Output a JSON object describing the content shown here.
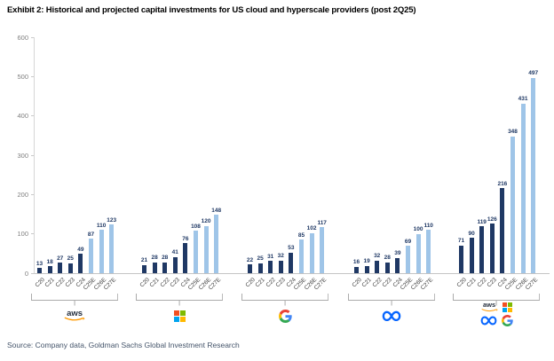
{
  "title": "Exhibit 2: Historical and projected capital investments for US cloud and hyperscale providers (post 2Q25)",
  "source": "Source: Company data, Goldman Sachs Global Investment Research",
  "colors": {
    "historical_bar": "#1F3864",
    "estimate_bar": "#9FC5E8",
    "value_label": "#1F3864",
    "axis_line": "#C4C4C4",
    "y_tick_label": "#7F7F7F",
    "x_tick_label": "#404040",
    "bracket": "#ABABAB",
    "source_text": "#44546A",
    "title_text": "#000000"
  },
  "logos": {
    "aws": {
      "label": "aws",
      "text_color": "#252F3E",
      "swoosh_color": "#FF9900"
    },
    "microsoft": {
      "square_colors": [
        "#F25022",
        "#7FBA00",
        "#00A4EF",
        "#FFB900"
      ]
    },
    "google": {
      "g_colors": [
        "#EA4335",
        "#4285F4",
        "#FBBC05",
        "#34A853"
      ]
    },
    "meta": {
      "infinity_color": "#0866FF"
    }
  },
  "chart_data": {
    "type": "bar",
    "title": "Exhibit 2: Historical and projected capital investments for US cloud and hyperscale providers (post 2Q25)",
    "categories": [
      "C20",
      "C21",
      "C22",
      "C23",
      "C24",
      "C25E",
      "C26E",
      "C27E"
    ],
    "estimate_from_index": 5,
    "ylim": [
      0,
      600
    ],
    "yticks": [
      0,
      100,
      200,
      300,
      400,
      500,
      600
    ],
    "grid": false,
    "legend": "none",
    "xlabel": "",
    "ylabel": "",
    "series": [
      {
        "name": "AWS",
        "logo": "aws",
        "values": [
          13,
          18,
          27,
          25,
          49,
          87,
          110,
          123
        ]
      },
      {
        "name": "Microsoft",
        "logo": "microsoft",
        "values": [
          21,
          28,
          28,
          41,
          76,
          108,
          120,
          148
        ]
      },
      {
        "name": "Google",
        "logo": "google",
        "values": [
          22,
          25,
          31,
          32,
          53,
          85,
          102,
          117
        ]
      },
      {
        "name": "Meta",
        "logo": "meta",
        "values": [
          16,
          19,
          32,
          28,
          39,
          69,
          100,
          110
        ]
      },
      {
        "name": "Combined",
        "logo": "combined",
        "values": [
          71,
          90,
          119,
          126,
          216,
          348,
          431,
          497
        ]
      }
    ]
  }
}
